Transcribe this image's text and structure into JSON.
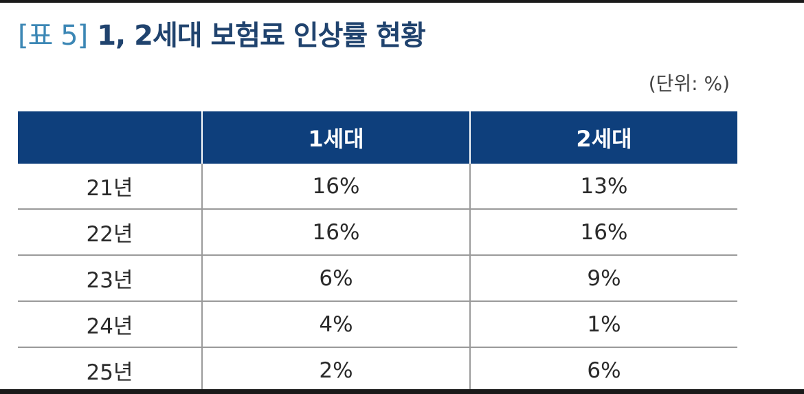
{
  "document": {
    "title_tag": "[표 5]",
    "title_main": "1, 2세대 보험료 인상률 현황",
    "unit": "(단위: %)"
  },
  "table": {
    "headers": [
      "",
      "1세대",
      "2세대"
    ],
    "rows": [
      [
        "21년",
        "16%",
        "13%"
      ],
      [
        "22년",
        "16%",
        "16%"
      ],
      [
        "23년",
        "6%",
        "9%"
      ],
      [
        "24년",
        "4%",
        "1%"
      ],
      [
        "25년",
        "2%",
        "6%"
      ]
    ]
  },
  "colors": {
    "title_tag": "#3c87b5",
    "title_main": "#20436e",
    "header_bg": "#0e3f7c"
  }
}
